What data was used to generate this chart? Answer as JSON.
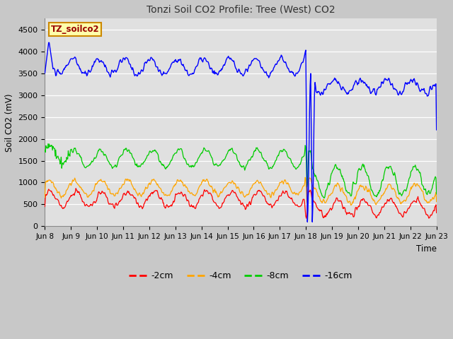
{
  "title": "Tonzi Soil CO2 Profile: Tree (West) CO2",
  "ylabel": "Soil CO2 (mV)",
  "xlabel": "Time",
  "legend_label": "TZ_soilco2",
  "series_labels": [
    "-2cm",
    "-4cm",
    "-8cm",
    "-16cm"
  ],
  "series_colors": [
    "#ff0000",
    "#ffa500",
    "#00cc00",
    "#0000ff"
  ],
  "ylim": [
    0,
    4750
  ],
  "yticks": [
    0,
    500,
    1000,
    1500,
    2000,
    2500,
    3000,
    3500,
    4000,
    4500
  ],
  "xtick_labels": [
    "Jun 8",
    "Jun 9",
    "Jun 10",
    "Jun 11",
    "Jun 12",
    "Jun 13",
    "Jun 14",
    "Jun 15",
    "Jun 16",
    "Jun 17",
    "Jun 18",
    "Jun 19",
    "Jun 20",
    "Jun 21",
    "Jun 22",
    "Jun 23"
  ],
  "background_color": "#c8c8c8",
  "plot_bg_color": "#e0e0e0",
  "title_color": "#333333",
  "box_facecolor": "#ffffaa",
  "box_edgecolor": "#cc8800",
  "label_text_color": "#990000",
  "grid_color": "#ffffff",
  "n_days": 15,
  "pts_per_day": 48
}
